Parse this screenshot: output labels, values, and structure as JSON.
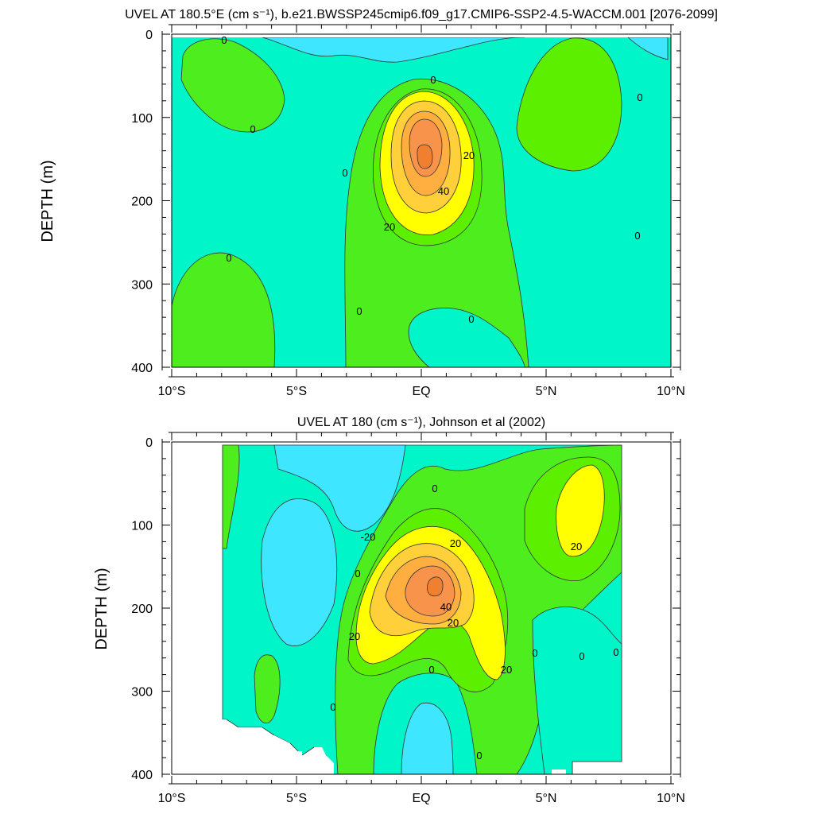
{
  "chart_data": [
    {
      "type": "contour",
      "title": "UVEL AT 180.5°E (cm s⁻¹), b.e21.BWSSP245cmip6.f09_g17.CMIP6-SSP2-4.5-WACCM.001 [2076-2099]",
      "ylabel": "DEPTH (m)",
      "xlabel": "",
      "xlim": [
        -10,
        10
      ],
      "ylim": [
        0,
        400
      ],
      "y_reversed": true,
      "xticks": [
        "10°S",
        "5°S",
        "EQ",
        "5°N",
        "10°N"
      ],
      "yticks": [
        "0",
        "100",
        "200",
        "300",
        "400"
      ],
      "contour_interval": 10,
      "fill_levels": [
        {
          "range": "< -10",
          "color": "#3fe6ff"
        },
        {
          "range": "-10 to 0",
          "color": "#00f5c8"
        },
        {
          "range": "0 to 10",
          "color": "#4ded1e"
        },
        {
          "range": "10 to 20",
          "color": "#5cf000"
        },
        {
          "range": "20 to 30",
          "color": "#ffff00"
        },
        {
          "range": "30 to 40",
          "color": "#ffd03a"
        },
        {
          "range": "40 to 50",
          "color": "#ffae3f"
        },
        {
          "range": "> 50",
          "color": "#f7934b"
        }
      ],
      "contour_labels": [
        {
          "text": "0",
          "lat": -7.9,
          "depth": 5
        },
        {
          "text": "0",
          "lat": 0.4,
          "depth": 55
        },
        {
          "text": "0",
          "lat": 8.6,
          "depth": 70
        },
        {
          "text": "0",
          "lat": -6.7,
          "depth": 110
        },
        {
          "text": "0",
          "lat": -3.1,
          "depth": 165
        },
        {
          "text": "20",
          "lat": 1.9,
          "depth": 140
        },
        {
          "text": "40",
          "lat": 0.8,
          "depth": 185
        },
        {
          "text": "20",
          "lat": -1.3,
          "depth": 230
        },
        {
          "text": "0",
          "lat": 8.5,
          "depth": 240
        },
        {
          "text": "0",
          "lat": -7.9,
          "depth": 265
        },
        {
          "text": "0",
          "lat": -2.5,
          "depth": 320
        },
        {
          "text": "0",
          "lat": 2.0,
          "depth": 335
        }
      ],
      "features": [
        {
          "name": "core maximum",
          "lat": 0.0,
          "depth": 150,
          "value_range": "> 50"
        }
      ]
    },
    {
      "type": "contour",
      "title": "UVEL AT 180 (cm s⁻¹), Johnson et al (2002)",
      "ylabel": "DEPTH (m)",
      "xlabel": "",
      "xlim": [
        -10,
        10
      ],
      "ylim": [
        0,
        400
      ],
      "y_reversed": true,
      "xticks": [
        "10°S",
        "5°S",
        "EQ",
        "5°N",
        "10°N"
      ],
      "yticks": [
        "0",
        "100",
        "200",
        "300",
        "400"
      ],
      "contour_interval": 10,
      "contour_labels": [
        {
          "text": "0",
          "lat": 0.5,
          "depth": 55
        },
        {
          "text": "-20",
          "lat": -2.2,
          "depth": 115
        },
        {
          "text": "20",
          "lat": 1.3,
          "depth": 120
        },
        {
          "text": "20",
          "lat": 6.2,
          "depth": 125
        },
        {
          "text": "0",
          "lat": -2.6,
          "depth": 160
        },
        {
          "text": "40",
          "lat": 1.0,
          "depth": 205
        },
        {
          "text": "20",
          "lat": 1.3,
          "depth": 225
        },
        {
          "text": "20",
          "lat": -2.7,
          "depth": 235
        },
        {
          "text": "0",
          "lat": 4.6,
          "depth": 250
        },
        {
          "text": "0",
          "lat": 6.4,
          "depth": 255
        },
        {
          "text": "0",
          "lat": 7.8,
          "depth": 250
        },
        {
          "text": "0",
          "lat": 0.4,
          "depth": 275
        },
        {
          "text": "20",
          "lat": 3.4,
          "depth": 280
        },
        {
          "text": "0",
          "lat": -3.5,
          "depth": 320
        },
        {
          "text": "0",
          "lat": 2.3,
          "depth": 375
        }
      ],
      "features": [
        {
          "name": "core maximum",
          "lat": 0.5,
          "depth": 170,
          "value_range": "> 50"
        },
        {
          "name": "secondary maximum",
          "lat": 6.5,
          "depth": 80,
          "value_range": "20 to 30"
        }
      ]
    }
  ]
}
